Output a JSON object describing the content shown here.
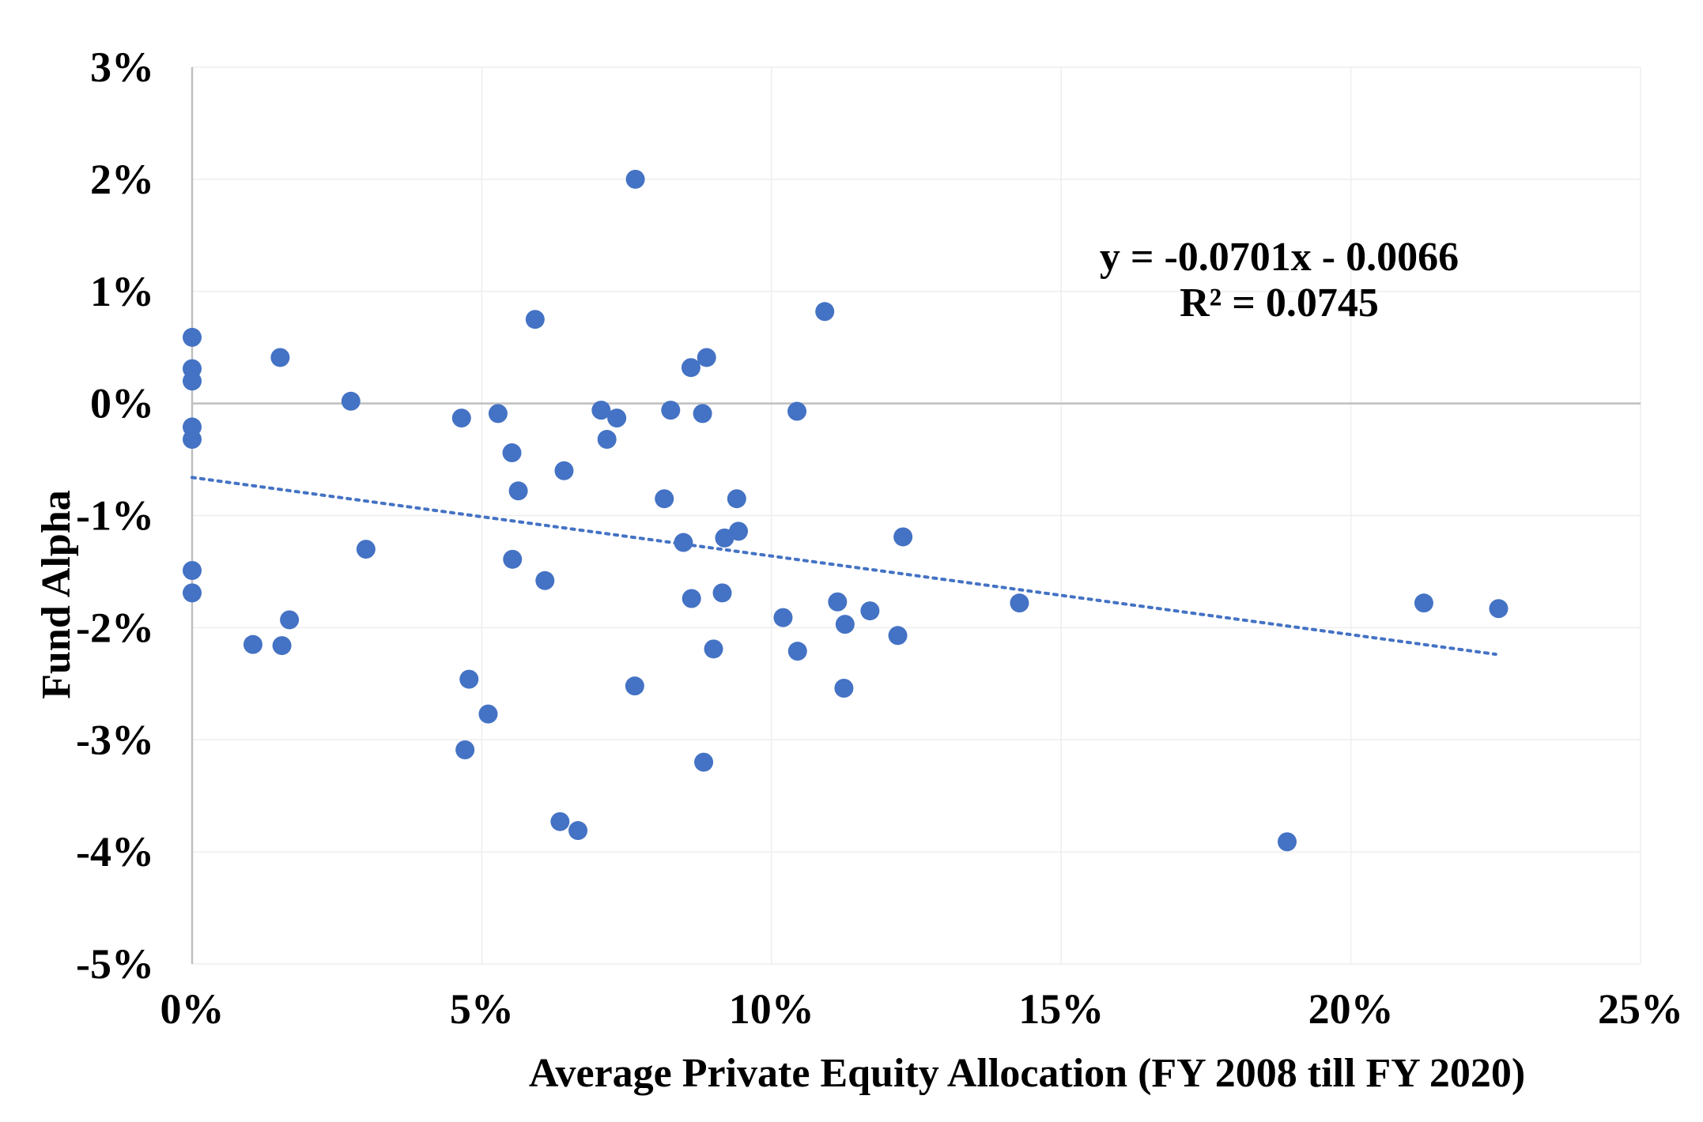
{
  "chart_data": {
    "type": "scatter",
    "title": "",
    "xlabel": "Average Private Equity Allocation (FY 2008 till FY 2020)",
    "ylabel": "Fund Alpha",
    "xlim": [
      0,
      0.25
    ],
    "ylim": [
      -0.05,
      0.03
    ],
    "x_ticks": [
      0,
      0.05,
      0.1,
      0.15,
      0.2,
      0.25
    ],
    "x_tick_labels": [
      "0%",
      "5%",
      "10%",
      "15%",
      "20%",
      "25%"
    ],
    "y_ticks": [
      0.03,
      0.02,
      0.01,
      0.0,
      -0.01,
      -0.02,
      -0.03,
      -0.04,
      -0.05
    ],
    "y_tick_labels": [
      "3%",
      "2%",
      "1%",
      "0%",
      "-1%",
      "-2%",
      "-3%",
      "-4%",
      "-5%"
    ],
    "grid": true,
    "marker_color": "#4472C4",
    "trendline_color": "#4472C4",
    "axis_color": "#bfbfbf",
    "grid_color": "#eeeeee",
    "trendline": {
      "type": "linear",
      "slope": -0.0701,
      "intercept": -0.0066,
      "x_range": [
        0.0,
        0.225
      ],
      "equation_label": "y = -0.0701x - 0.0066",
      "r2_label": "R² = 0.0745"
    },
    "points": [
      {
        "x": 0.0,
        "y": 0.0059
      },
      {
        "x": 0.0,
        "y": 0.0031
      },
      {
        "x": 0.0,
        "y": 0.002
      },
      {
        "x": 0.0,
        "y": -0.0021
      },
      {
        "x": 0.0,
        "y": -0.0032
      },
      {
        "x": 0.0,
        "y": -0.0149
      },
      {
        "x": 0.0,
        "y": -0.0169
      },
      {
        "x": 0.0105,
        "y": -0.0215
      },
      {
        "x": 0.0152,
        "y": 0.0041
      },
      {
        "x": 0.0155,
        "y": -0.0216
      },
      {
        "x": 0.0168,
        "y": -0.0193
      },
      {
        "x": 0.0274,
        "y": 0.0002
      },
      {
        "x": 0.03,
        "y": -0.013
      },
      {
        "x": 0.0465,
        "y": -0.0013
      },
      {
        "x": 0.0478,
        "y": -0.0246
      },
      {
        "x": 0.0471,
        "y": -0.0309
      },
      {
        "x": 0.0511,
        "y": -0.0277
      },
      {
        "x": 0.0528,
        "y": -0.0009
      },
      {
        "x": 0.0552,
        "y": -0.0044
      },
      {
        "x": 0.0553,
        "y": -0.0139
      },
      {
        "x": 0.0563,
        "y": -0.0078
      },
      {
        "x": 0.0592,
        "y": 0.0075
      },
      {
        "x": 0.0609,
        "y": -0.0158
      },
      {
        "x": 0.0642,
        "y": -0.006
      },
      {
        "x": 0.0635,
        "y": -0.0373
      },
      {
        "x": 0.0666,
        "y": -0.0381
      },
      {
        "x": 0.0706,
        "y": -0.0006
      },
      {
        "x": 0.0716,
        "y": -0.0032
      },
      {
        "x": 0.0733,
        "y": -0.0013
      },
      {
        "x": 0.0765,
        "y": 0.02
      },
      {
        "x": 0.0764,
        "y": -0.0252
      },
      {
        "x": 0.0815,
        "y": -0.0085
      },
      {
        "x": 0.0826,
        "y": -0.0006
      },
      {
        "x": 0.0848,
        "y": -0.0124
      },
      {
        "x": 0.0861,
        "y": 0.0032
      },
      {
        "x": 0.0862,
        "y": -0.0174
      },
      {
        "x": 0.0881,
        "y": -0.0009
      },
      {
        "x": 0.0888,
        "y": 0.0041
      },
      {
        "x": 0.0883,
        "y": -0.032
      },
      {
        "x": 0.09,
        "y": -0.0219
      },
      {
        "x": 0.0915,
        "y": -0.0169
      },
      {
        "x": 0.0919,
        "y": -0.012
      },
      {
        "x": 0.094,
        "y": -0.0085
      },
      {
        "x": 0.0943,
        "y": -0.0114
      },
      {
        "x": 0.102,
        "y": -0.0191
      },
      {
        "x": 0.1044,
        "y": -0.0007
      },
      {
        "x": 0.1045,
        "y": -0.0221
      },
      {
        "x": 0.1092,
        "y": 0.0082
      },
      {
        "x": 0.1114,
        "y": -0.0177
      },
      {
        "x": 0.1127,
        "y": -0.0197
      },
      {
        "x": 0.1125,
        "y": -0.0254
      },
      {
        "x": 0.117,
        "y": -0.0185
      },
      {
        "x": 0.1218,
        "y": -0.0207
      },
      {
        "x": 0.1227,
        "y": -0.0119
      },
      {
        "x": 0.1428,
        "y": -0.0178
      },
      {
        "x": 0.189,
        "y": -0.0391
      },
      {
        "x": 0.2126,
        "y": -0.0178
      },
      {
        "x": 0.2255,
        "y": -0.0183
      }
    ]
  }
}
